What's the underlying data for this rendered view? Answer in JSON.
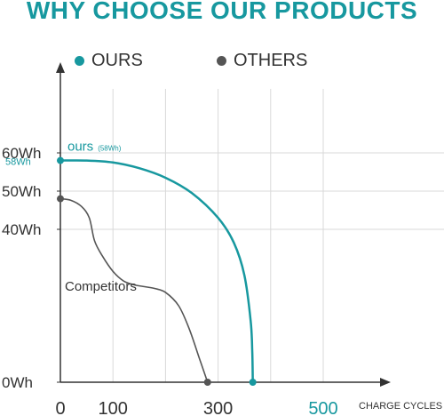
{
  "colors": {
    "ours": "#17989f",
    "others": "#555555",
    "title": "#17989f",
    "grid": "#d9d9d9",
    "axis": "#333333"
  },
  "header": {
    "title": "WHY CHOOSE OUR PRODUCTS"
  },
  "legend": {
    "ours": "OURS",
    "others": "OTHERS"
  },
  "annotations": {
    "ours_label": "ours",
    "ours_small": "(58Wh)",
    "ours_left": "58Wh",
    "competitors": "Competitors"
  },
  "chart_data": {
    "type": "line",
    "title": "WHY CHOOSE OUR PRODUCTS",
    "xlabel": "CHARGE CYCLES",
    "ylabel": "",
    "xlim": [
      0,
      520
    ],
    "ylim": [
      0,
      70
    ],
    "x_ticks": [
      {
        "value": 0,
        "label": "0"
      },
      {
        "value": 100,
        "label": "100"
      },
      {
        "value": 300,
        "label": "300"
      },
      {
        "value": 500,
        "label": "500"
      }
    ],
    "x_grid": [
      0,
      100,
      200,
      300,
      400,
      500
    ],
    "y_ticks": [
      {
        "value": 0,
        "label": "0Wh"
      },
      {
        "value": 40,
        "label": "40Wh"
      },
      {
        "value": 50,
        "label": "50Wh"
      },
      {
        "value": 60,
        "label": "60Wh"
      }
    ],
    "grid": true,
    "legend_position": "top",
    "series": [
      {
        "name": "OURS",
        "color": "#17989f",
        "points": [
          [
            0,
            58
          ],
          [
            50,
            58
          ],
          [
            100,
            57.5
          ],
          [
            150,
            56
          ],
          [
            200,
            53.5
          ],
          [
            250,
            49.5
          ],
          [
            300,
            43
          ],
          [
            330,
            36.5
          ],
          [
            350,
            28
          ],
          [
            362,
            16
          ],
          [
            365,
            8
          ],
          [
            366,
            0
          ]
        ]
      },
      {
        "name": "OTHERS",
        "color": "#555555",
        "points": [
          [
            0,
            48
          ],
          [
            20,
            47.6
          ],
          [
            40,
            46
          ],
          [
            55,
            43
          ],
          [
            65,
            37
          ],
          [
            80,
            33
          ],
          [
            100,
            29
          ],
          [
            120,
            26.5
          ],
          [
            140,
            25.5
          ],
          [
            160,
            25
          ],
          [
            180,
            24.5
          ],
          [
            200,
            23.5
          ],
          [
            225,
            20
          ],
          [
            245,
            14
          ],
          [
            265,
            6
          ],
          [
            280,
            0
          ]
        ]
      }
    ],
    "markers": [
      {
        "series": "OURS",
        "x": 0,
        "y": 58
      },
      {
        "series": "OURS",
        "x": 366,
        "y": 0
      },
      {
        "series": "OTHERS",
        "x": 0,
        "y": 48
      },
      {
        "series": "OTHERS",
        "x": 280,
        "y": 0
      }
    ]
  }
}
